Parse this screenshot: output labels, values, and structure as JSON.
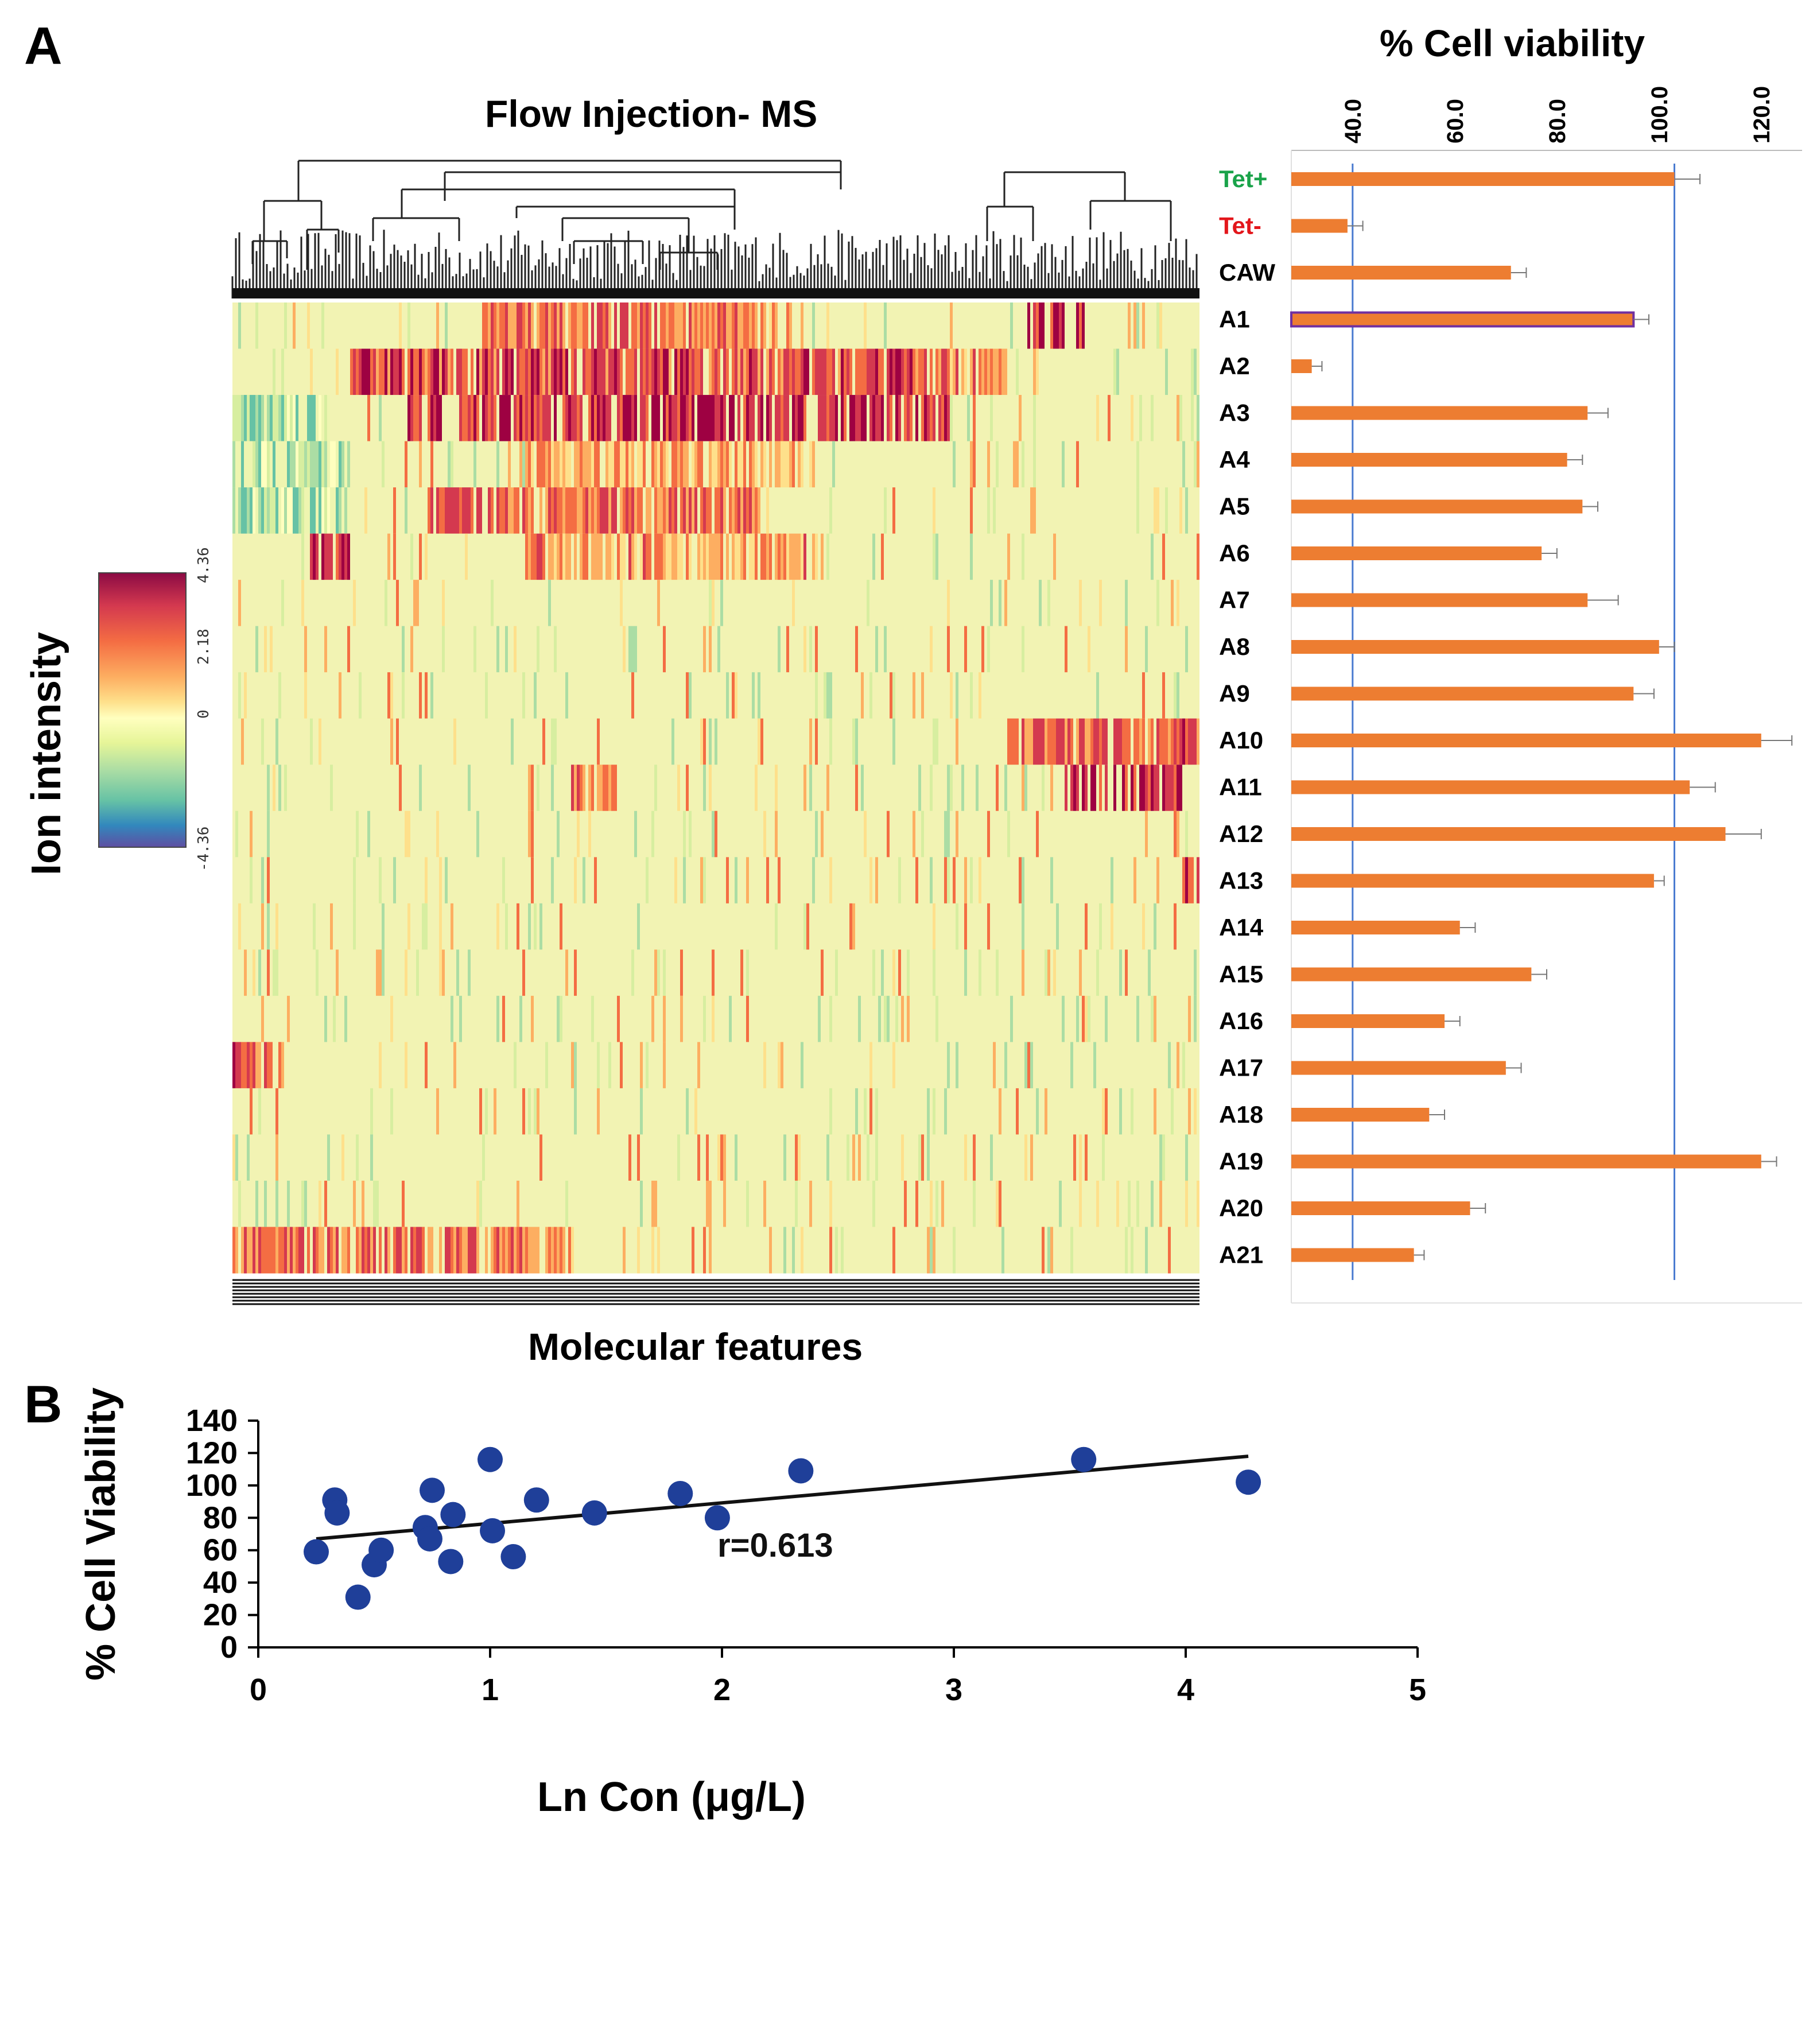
{
  "panel_a": {
    "label": "A",
    "heatmap": {
      "title": "Flow Injection- MS",
      "xlabel": "Molecular features",
      "ylabel": "Ion intensity",
      "colorbar_ticks": [
        "4.36",
        "2.18",
        "0",
        "-4.36"
      ]
    }
  },
  "panel_b": {
    "label": "B"
  },
  "chart_data": [
    {
      "type": "bar",
      "orientation": "horizontal",
      "title": "% Cell viability",
      "xlim": [
        28,
        128
      ],
      "xticks": [
        "40.0",
        "60.0",
        "80.0",
        "100.0",
        "120.0"
      ],
      "reference_lines": [
        40,
        103
      ],
      "categories": [
        "Tet+",
        "Tet-",
        "CAW",
        "A1",
        "A2",
        "A3",
        "A4",
        "A5",
        "A6",
        "A7",
        "A8",
        "A9",
        "A10",
        "A11",
        "A12",
        "A13",
        "A14",
        "A15",
        "A16",
        "A17",
        "A18",
        "A19",
        "A20",
        "A21"
      ],
      "category_colors": {
        "Tet+": "#1aa34a",
        "Tet-": "#e3161b"
      },
      "values": [
        103,
        39,
        71,
        95,
        32,
        86,
        82,
        85,
        77,
        86,
        100,
        95,
        120,
        106,
        113,
        99,
        61,
        75,
        58,
        70,
        55,
        120,
        63,
        52
      ],
      "errors": [
        5,
        3,
        3,
        3,
        2,
        4,
        3,
        3,
        3,
        6,
        3,
        4,
        6,
        5,
        7,
        2,
        3,
        3,
        3,
        3,
        3,
        3,
        3,
        2
      ],
      "bar_color": "#ed7d31",
      "highlight": {
        "category": "A1",
        "outline": "#7030a0"
      }
    },
    {
      "type": "scatter",
      "xlabel": "Ln Con (μg/L)",
      "ylabel": "% Cell Viability",
      "xlim": [
        0,
        5
      ],
      "ylim": [
        0,
        140
      ],
      "xticks": [
        "0",
        "1",
        "2",
        "3",
        "4",
        "5"
      ],
      "yticks": [
        "0",
        "20",
        "40",
        "60",
        "80",
        "100",
        "120",
        "140"
      ],
      "points": [
        [
          0.25,
          59
        ],
        [
          0.33,
          91
        ],
        [
          0.34,
          83
        ],
        [
          0.43,
          31
        ],
        [
          0.5,
          51
        ],
        [
          0.53,
          60
        ],
        [
          0.72,
          74
        ],
        [
          0.74,
          67
        ],
        [
          0.75,
          97
        ],
        [
          0.83,
          53
        ],
        [
          0.84,
          82
        ],
        [
          1.0,
          116
        ],
        [
          1.01,
          72
        ],
        [
          1.1,
          56
        ],
        [
          1.2,
          91
        ],
        [
          1.45,
          83
        ],
        [
          1.82,
          95
        ],
        [
          1.98,
          80
        ],
        [
          2.34,
          109
        ],
        [
          3.56,
          116
        ],
        [
          4.27,
          102
        ]
      ],
      "marker_color": "#1f3f99",
      "trendline": {
        "x": [
          0.25,
          4.27
        ],
        "y": [
          67,
          118
        ]
      },
      "annotation": "r=0.613"
    }
  ]
}
